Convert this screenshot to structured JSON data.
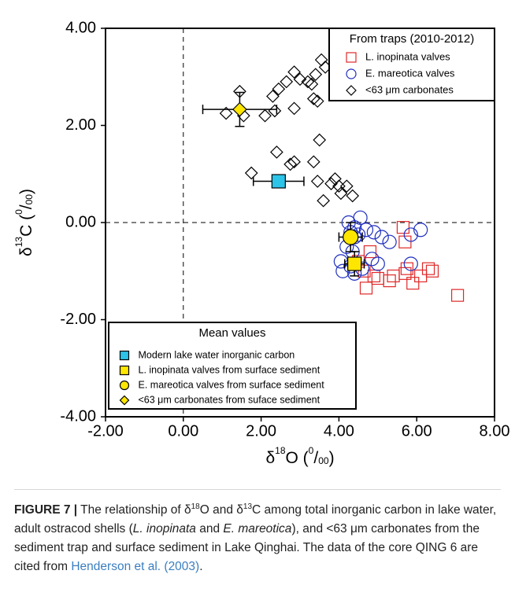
{
  "chart_data": {
    "type": "scatter",
    "xlabel": [
      {
        "text": "δ",
        "style": "normal"
      },
      {
        "text": "18",
        "style": "sup"
      },
      {
        "text": "O (",
        "style": "normal"
      },
      {
        "text": "0",
        "style": "sup"
      },
      {
        "text": "/",
        "style": "normal"
      },
      {
        "text": "00",
        "style": "sub"
      },
      {
        "text": ")",
        "style": "normal"
      }
    ],
    "ylabel": [
      {
        "text": "δ",
        "style": "normal"
      },
      {
        "text": "13",
        "style": "sup"
      },
      {
        "text": "C (",
        "style": "normal"
      },
      {
        "text": "0",
        "style": "sup"
      },
      {
        "text": "/",
        "style": "normal"
      },
      {
        "text": "00",
        "style": "sub"
      },
      {
        "text": ")",
        "style": "normal"
      }
    ],
    "xlim": [
      -2,
      8
    ],
    "ylim": [
      -4,
      4
    ],
    "xticks": [
      {
        "value": -2,
        "label": "-2.00"
      },
      {
        "value": 0,
        "label": "0.00"
      },
      {
        "value": 2,
        "label": "2.00"
      },
      {
        "value": 4,
        "label": "4.00"
      },
      {
        "value": 6,
        "label": "6.00"
      },
      {
        "value": 8,
        "label": "8.00"
      }
    ],
    "yticks": [
      {
        "value": -4,
        "label": "-4.00"
      },
      {
        "value": -2,
        "label": "-2.00"
      },
      {
        "value": 0,
        "label": "0.00"
      },
      {
        "value": 2,
        "label": "2.00"
      },
      {
        "value": 4,
        "label": "4.00"
      }
    ],
    "zero_lines": true,
    "legend_title": "From traps (2010-2012)",
    "legend_loc": "upper right",
    "series": [
      {
        "name": "L. inopinata valves",
        "marker": "square",
        "color": "#e02828",
        "filled": false,
        "x": [
          5.65,
          5.7,
          4.8,
          4.5,
          4.65,
          4.9,
          5.0,
          5.3,
          5.4,
          5.7,
          5.9,
          6.1,
          6.3,
          6.4,
          4.7,
          5.75,
          7.05
        ],
        "values": [
          -0.1,
          -0.4,
          -0.6,
          -0.8,
          -1.0,
          -1.1,
          -1.15,
          -1.2,
          -1.1,
          -1.05,
          -1.25,
          -1.1,
          -0.95,
          -1.0,
          -1.35,
          -0.95,
          -1.5
        ]
      },
      {
        "name": "E. mareotica valves",
        "marker": "circle",
        "color": "#1e2ec0",
        "filled": false,
        "x": [
          4.25,
          4.4,
          4.55,
          4.3,
          4.4,
          4.5,
          4.7,
          4.9,
          5.1,
          5.3,
          5.85,
          6.1,
          4.05,
          4.1,
          4.3,
          4.4,
          4.6,
          4.85,
          5.0,
          5.85,
          4.2,
          4.35
        ],
        "values": [
          0.0,
          -0.1,
          0.1,
          -0.2,
          -0.3,
          -0.25,
          -0.15,
          -0.2,
          -0.3,
          -0.4,
          -0.25,
          -0.15,
          -0.8,
          -1.0,
          -0.9,
          -1.05,
          -0.95,
          -0.75,
          -0.85,
          -0.85,
          -0.5,
          -0.6
        ]
      },
      {
        "name": "<63 μm carbonates",
        "marker": "diamond",
        "color": "#000000",
        "filled": false,
        "x": [
          1.45,
          1.1,
          1.55,
          2.1,
          2.3,
          2.45,
          2.65,
          2.85,
          3.0,
          3.2,
          3.3,
          3.4,
          3.55,
          3.65,
          3.35,
          3.45,
          2.85,
          2.35,
          1.75,
          2.4,
          2.75,
          2.85,
          3.35,
          3.5,
          3.45,
          3.6,
          3.8,
          3.9,
          4.0,
          4.05,
          4.2,
          4.35
        ],
        "values": [
          2.7,
          2.25,
          2.2,
          2.2,
          2.6,
          2.75,
          2.9,
          3.1,
          2.95,
          2.9,
          2.85,
          3.05,
          3.35,
          3.2,
          2.55,
          2.5,
          2.35,
          2.3,
          1.02,
          1.45,
          1.2,
          1.25,
          1.25,
          1.7,
          0.85,
          0.45,
          0.8,
          0.9,
          0.75,
          0.6,
          0.75,
          0.55
        ]
      }
    ],
    "mean_legend_title": "Mean values",
    "mean_legend_loc": "lower left",
    "mean_series": [
      {
        "name": "Modern lake water inorganic carbon",
        "marker": "square",
        "color": "#2cc4e8",
        "x": [
          2.45
        ],
        "values": [
          0.85
        ],
        "xerr": [
          0.65
        ],
        "yerr": [
          0.07
        ]
      },
      {
        "name": "L. inopinata valves from surface sediment",
        "marker": "square",
        "color": "#ffe600",
        "x": [
          4.4
        ],
        "values": [
          -0.85
        ],
        "xerr": [
          0.25
        ],
        "yerr": [
          0.25
        ]
      },
      {
        "name": "E. mareotica valves from surface sediment",
        "marker": "circle",
        "color": "#ffe600",
        "x": [
          4.3
        ],
        "values": [
          -0.3
        ],
        "xerr": [
          0.3
        ],
        "yerr": [
          0.3
        ]
      },
      {
        "name": "<63 μm carbonates from suface sediment",
        "marker": "diamond",
        "color": "#ffe600",
        "x": [
          1.45
        ],
        "values": [
          2.33
        ],
        "xerr": [
          0.95
        ],
        "yerr": [
          0.35
        ]
      }
    ]
  },
  "caption": [
    {
      "text": "FIGURE 7 |",
      "style": "bold"
    },
    {
      "text": " The relationship of δ",
      "style": "normal"
    },
    {
      "text": "18",
      "style": "sup"
    },
    {
      "text": "O and δ",
      "style": "normal"
    },
    {
      "text": "13",
      "style": "sup"
    },
    {
      "text": "C among total inorganic carbon in lake water, adult ostracod shells (",
      "style": "normal"
    },
    {
      "text": "L. inopinata",
      "style": "italic"
    },
    {
      "text": " and ",
      "style": "normal"
    },
    {
      "text": "E. mareotica",
      "style": "italic"
    },
    {
      "text": "), and <63 μm carbonates from the sediment trap and surface sediment in Lake Qinghai. The data of the core QING 6 are cited from ",
      "style": "normal"
    },
    {
      "text": "Henderson et al. (2003)",
      "style": "link"
    },
    {
      "text": ".",
      "style": "normal"
    }
  ]
}
